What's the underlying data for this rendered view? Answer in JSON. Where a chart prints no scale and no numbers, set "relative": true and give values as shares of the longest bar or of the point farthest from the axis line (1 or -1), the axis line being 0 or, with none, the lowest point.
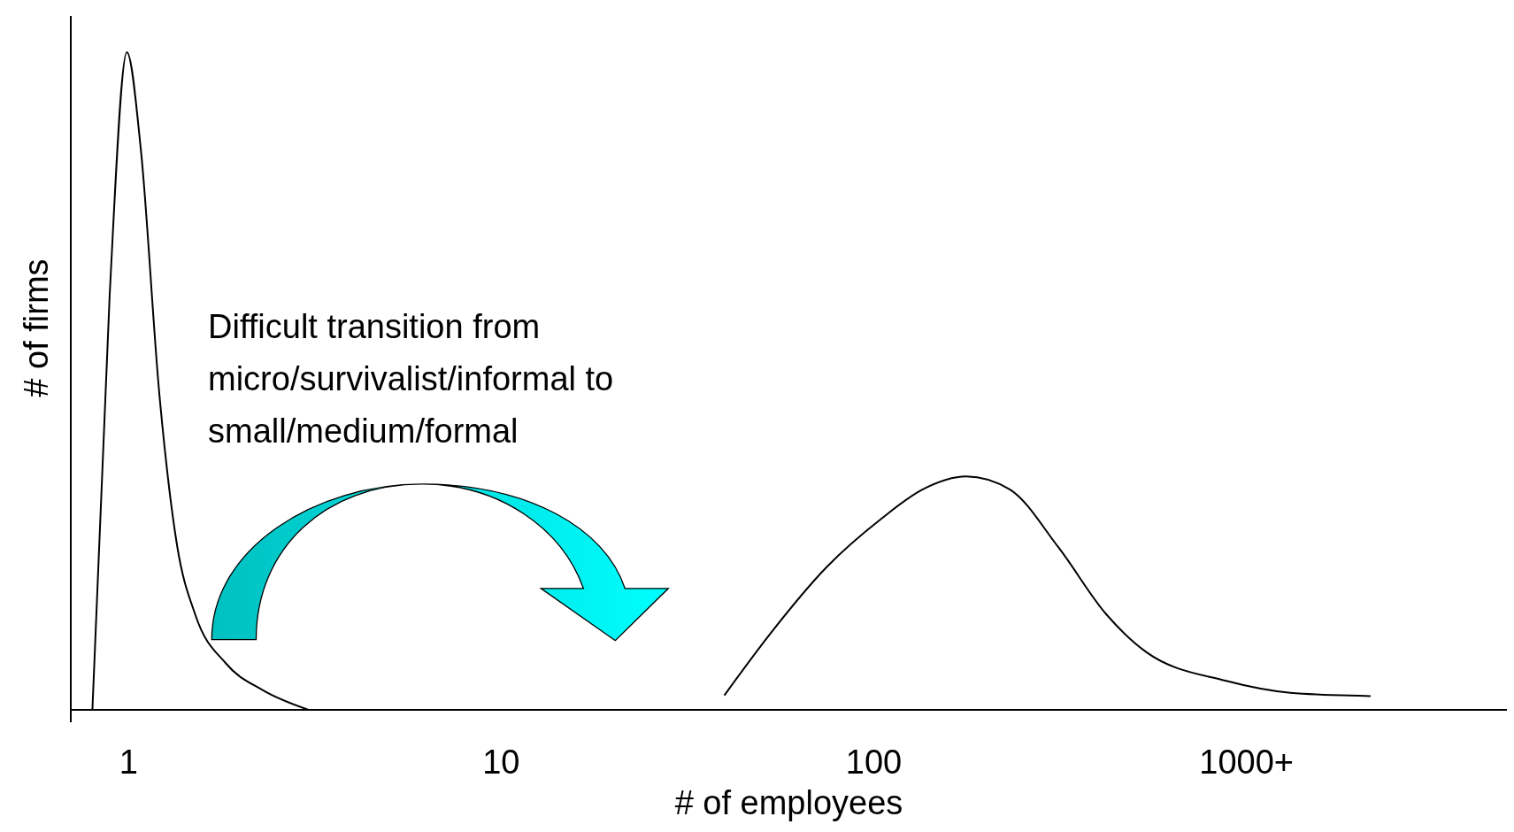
{
  "chart_data": {
    "type": "line",
    "relative": true,
    "log": "x",
    "xlabel": "# of employees",
    "ylabel": "# of firms",
    "xlim": [
      0.7,
      5000
    ],
    "xticks": [
      1,
      10,
      100,
      {
        "value": 1000,
        "label": "1000+"
      }
    ],
    "series": [
      {
        "color": "#000000",
        "x": [
          0.8,
          0.89,
          0.99,
          1.08,
          1.21,
          1.35,
          1.51,
          1.83,
          2.29,
          3.04
        ],
        "values": [
          0,
          0.63,
          1,
          0.85,
          0.48,
          0.25,
          0.145,
          0.07,
          0.03,
          0
        ]
      },
      {
        "color": "#000000",
        "x": [
          39.7,
          52.6,
          74.7,
          105,
          135,
          177,
          232,
          313,
          421,
          538,
          883,
          1312,
          2153
        ],
        "values": [
          0.022,
          0.115,
          0.217,
          0.291,
          0.335,
          0.355,
          0.335,
          0.247,
          0.145,
          0.088,
          0.044,
          0.026,
          0.021
        ]
      }
    ],
    "annotations": [
      "Difficult transition from\nmicro/survivalist/informal to\nsmall/medium/formal"
    ],
    "grid": false,
    "marker": "none",
    "line_style": "solid"
  }
}
